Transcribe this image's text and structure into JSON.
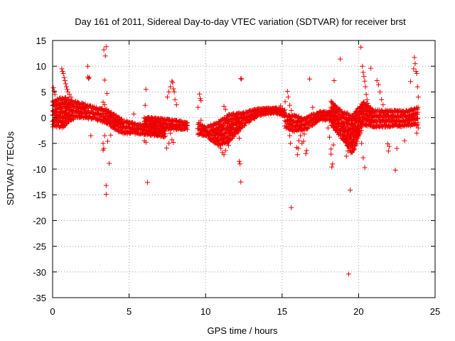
{
  "chart_data": {
    "type": "scatter",
    "title": "Day 161 of 2011, Sidereal Day-to-day VTEC variation (SDTVAR) for receiver brst",
    "xlabel": "GPS time / hours",
    "ylabel": "SDTVAR / TECUs",
    "xlim": [
      0,
      25
    ],
    "ylim": [
      -35,
      15
    ],
    "x_ticks": [
      0,
      5,
      10,
      15,
      20,
      25
    ],
    "y_ticks": [
      15,
      10,
      5,
      0,
      -5,
      -10,
      -15,
      -20,
      -25,
      -30,
      -35
    ],
    "grid": true,
    "marker": "+",
    "color": "#ee0000",
    "bands": [
      {
        "x": [
          0.0,
          0.7,
          1.5,
          2.5,
          3.5,
          4.5,
          5.5,
          6.5,
          7.4
        ],
        "center": [
          1.0,
          1.2,
          1.8,
          1.2,
          0.5,
          -1.5,
          -2.0,
          -2.5,
          -3.0
        ],
        "half_width": [
          2.8,
          3.2,
          1.8,
          1.5,
          1.6,
          1.6,
          1.2,
          1.0,
          0.8
        ]
      },
      {
        "x": [
          6.0,
          7.0,
          7.6,
          8.3,
          8.8
        ],
        "center": [
          -0.5,
          -0.8,
          -1.2,
          -1.3,
          -1.5
        ],
        "half_width": [
          0.8,
          1.0,
          1.2,
          1.0,
          0.8
        ]
      },
      {
        "x": [
          9.5,
          10.0,
          10.8,
          11.5,
          12.5,
          13.5,
          14.5,
          15.2
        ],
        "center": [
          -2.0,
          -2.5,
          -3.0,
          -2.0,
          0.0,
          1.2,
          1.5,
          1.0
        ],
        "half_width": [
          1.5,
          1.0,
          2.5,
          3.0,
          1.6,
          0.8,
          0.6,
          0.8
        ]
      },
      {
        "x": [
          15.2,
          15.8,
          16.5,
          17.5,
          18.2
        ],
        "center": [
          -0.5,
          -1.0,
          -1.0,
          0.5,
          0.5
        ],
        "half_width": [
          1.5,
          1.8,
          1.5,
          1.0,
          1.0
        ]
      },
      {
        "x": [
          18.2,
          19.0,
          19.6,
          20.3,
          21.0,
          22.0,
          23.0,
          23.9
        ],
        "center": [
          1.0,
          -1.5,
          -3.0,
          1.0,
          0.0,
          0.0,
          0.0,
          0.5
        ],
        "half_width": [
          2.5,
          3.0,
          4.0,
          2.5,
          2.0,
          1.8,
          1.8,
          2.0
        ]
      }
    ],
    "points": [
      [
        0.05,
        5.8
      ],
      [
        0.1,
        5.2
      ],
      [
        0.15,
        4.5
      ],
      [
        0.6,
        9.5
      ],
      [
        0.65,
        9.0
      ],
      [
        0.7,
        8.6
      ],
      [
        0.75,
        7.8
      ],
      [
        0.8,
        7.2
      ],
      [
        0.85,
        6.6
      ],
      [
        0.9,
        6.0
      ],
      [
        0.95,
        5.5
      ],
      [
        1.0,
        5.0
      ],
      [
        1.1,
        4.5
      ],
      [
        1.2,
        4.0
      ],
      [
        2.3,
        10.0
      ],
      [
        2.3,
        7.9
      ],
      [
        2.35,
        7.6
      ],
      [
        2.4,
        7.8
      ],
      [
        3.35,
        13.2
      ],
      [
        3.5,
        13.8
      ],
      [
        3.45,
        12.0
      ],
      [
        3.4,
        7.3
      ],
      [
        3.55,
        4.7
      ],
      [
        3.3,
        3.0
      ],
      [
        3.4,
        2.5
      ],
      [
        2.5,
        -3.5
      ],
      [
        3.3,
        -5.0
      ],
      [
        3.35,
        -6.0
      ],
      [
        3.3,
        -6.3
      ],
      [
        3.4,
        -3.5
      ],
      [
        3.5,
        -13.2
      ],
      [
        3.5,
        -14.9
      ],
      [
        3.7,
        -8.9
      ],
      [
        3.6,
        -4.6
      ],
      [
        3.8,
        -3.4
      ],
      [
        5.3,
        0.7
      ],
      [
        5.2,
        -2.8
      ],
      [
        6.1,
        5.5
      ],
      [
        6.05,
        2.4
      ],
      [
        6.2,
        -12.6
      ],
      [
        6.0,
        -4.5
      ],
      [
        6.1,
        -4.8
      ],
      [
        7.5,
        4.0
      ],
      [
        7.6,
        5.0
      ],
      [
        7.7,
        6.0
      ],
      [
        7.8,
        7.1
      ],
      [
        7.85,
        6.8
      ],
      [
        7.9,
        5.6
      ],
      [
        7.95,
        5.0
      ],
      [
        8.0,
        3.5
      ],
      [
        8.1,
        2.5
      ],
      [
        7.8,
        -4.3
      ],
      [
        7.9,
        -4.8
      ],
      [
        7.6,
        -5.0
      ],
      [
        7.45,
        -5.9
      ],
      [
        7.7,
        -3.0
      ],
      [
        9.6,
        4.6
      ],
      [
        9.65,
        3.7
      ],
      [
        9.7,
        3.3
      ],
      [
        9.5,
        2.0
      ],
      [
        9.7,
        -0.5
      ],
      [
        10.9,
        -5.0
      ],
      [
        11.0,
        -6.0
      ],
      [
        11.1,
        -6.8
      ],
      [
        11.2,
        -7.2
      ],
      [
        11.3,
        -6.4
      ],
      [
        11.5,
        -5.4
      ],
      [
        11.6,
        -3.2
      ],
      [
        11.2,
        2.2
      ],
      [
        11.3,
        1.6
      ],
      [
        11.4,
        -1.0
      ],
      [
        12.3,
        7.6
      ],
      [
        12.35,
        7.5
      ],
      [
        12.2,
        -8.5
      ],
      [
        12.25,
        -9.0
      ],
      [
        12.3,
        -12.5
      ],
      [
        12.2,
        -4.0
      ],
      [
        14.9,
        2.3
      ],
      [
        15.2,
        3.1
      ],
      [
        15.35,
        5.1
      ],
      [
        15.4,
        4.0
      ],
      [
        15.5,
        2.4
      ],
      [
        15.6,
        1.4
      ],
      [
        15.5,
        -3.5
      ],
      [
        15.55,
        -5.0
      ],
      [
        15.6,
        -17.5
      ],
      [
        15.8,
        0.5
      ],
      [
        15.95,
        -5.8
      ],
      [
        16.0,
        -7.2
      ],
      [
        16.05,
        -6.0
      ],
      [
        16.1,
        -4.5
      ],
      [
        16.2,
        -3.5
      ],
      [
        16.3,
        -5.0
      ],
      [
        16.4,
        -4.6
      ],
      [
        16.45,
        -3.2
      ],
      [
        16.55,
        -7.0
      ],
      [
        16.6,
        -6.4
      ],
      [
        16.8,
        7.5
      ],
      [
        17.0,
        2.0
      ],
      [
        17.9,
        -0.3
      ],
      [
        18.0,
        -2.0
      ],
      [
        18.1,
        -3.8
      ],
      [
        18.2,
        -7.1
      ],
      [
        18.25,
        -9.6
      ],
      [
        18.3,
        -9.0
      ],
      [
        18.4,
        7.2
      ],
      [
        18.2,
        -6.1
      ],
      [
        18.35,
        -5.3
      ],
      [
        18.8,
        11.4
      ],
      [
        19.2,
        -7.5
      ],
      [
        19.3,
        -6.5
      ],
      [
        19.45,
        -14.1
      ],
      [
        19.35,
        -30.4
      ],
      [
        19.5,
        -6.8
      ],
      [
        19.6,
        -6.0
      ],
      [
        20.15,
        13.7
      ],
      [
        20.25,
        10.0
      ],
      [
        20.3,
        8.8
      ],
      [
        20.35,
        8.0
      ],
      [
        20.4,
        7.1
      ],
      [
        20.45,
        6.0
      ],
      [
        20.5,
        4.5
      ],
      [
        20.55,
        3.5
      ],
      [
        20.6,
        2.8
      ],
      [
        20.2,
        -5.0
      ],
      [
        20.3,
        -7.8
      ],
      [
        20.4,
        -9.7
      ],
      [
        20.8,
        9.6
      ],
      [
        21.2,
        7.2
      ],
      [
        21.3,
        6.4
      ],
      [
        21.4,
        5.0
      ],
      [
        21.5,
        3.5
      ],
      [
        21.6,
        2.5
      ],
      [
        21.9,
        -5.1
      ],
      [
        21.95,
        -6.5
      ],
      [
        22.0,
        -5.6
      ],
      [
        22.5,
        -6.0
      ],
      [
        22.4,
        -10.2
      ],
      [
        23.0,
        -4.5
      ],
      [
        23.4,
        7.0
      ],
      [
        23.6,
        9.5
      ],
      [
        23.65,
        11.7
      ],
      [
        23.7,
        10.5
      ],
      [
        23.75,
        9.0
      ],
      [
        23.8,
        8.6
      ],
      [
        23.85,
        6.0
      ],
      [
        23.9,
        4.0
      ],
      [
        23.8,
        -3.0
      ],
      [
        23.9,
        -2.0
      ]
    ]
  }
}
